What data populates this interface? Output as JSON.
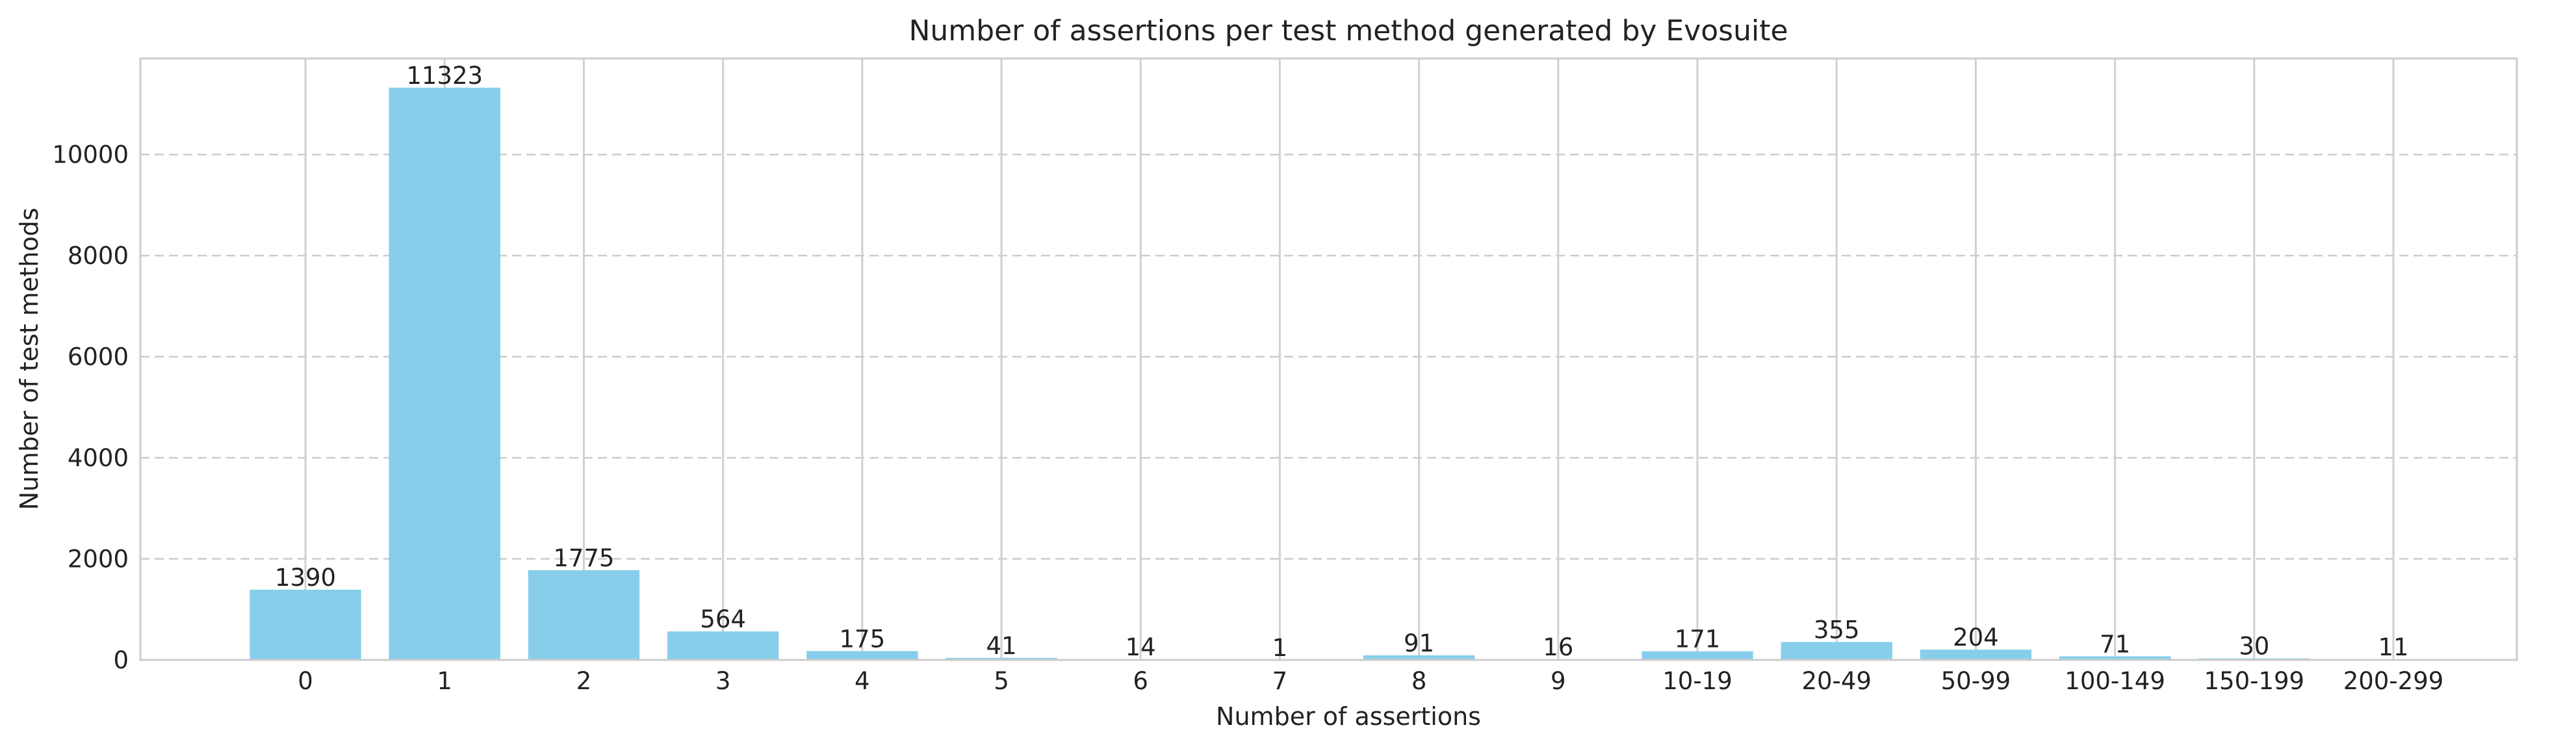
{
  "chart_data": {
    "type": "bar",
    "title": "Number of assertions per test method generated by Evosuite",
    "xlabel": "Number of assertions",
    "ylabel": "Number of test methods",
    "categories": [
      "0",
      "1",
      "2",
      "3",
      "4",
      "5",
      "6",
      "7",
      "8",
      "9",
      "10-19",
      "20-49",
      "50-99",
      "100-149",
      "150-199",
      "200-299"
    ],
    "values": [
      1390,
      11323,
      1775,
      564,
      175,
      41,
      14,
      1,
      91,
      16,
      171,
      355,
      204,
      71,
      30,
      11
    ],
    "ylim": [
      0,
      11900
    ],
    "yticks": [
      0,
      2000,
      4000,
      6000,
      8000,
      10000
    ],
    "bar_color": "#87ceeb",
    "grid": {
      "horizontal": "dashed",
      "vertical": "solid"
    },
    "legend": "none"
  }
}
